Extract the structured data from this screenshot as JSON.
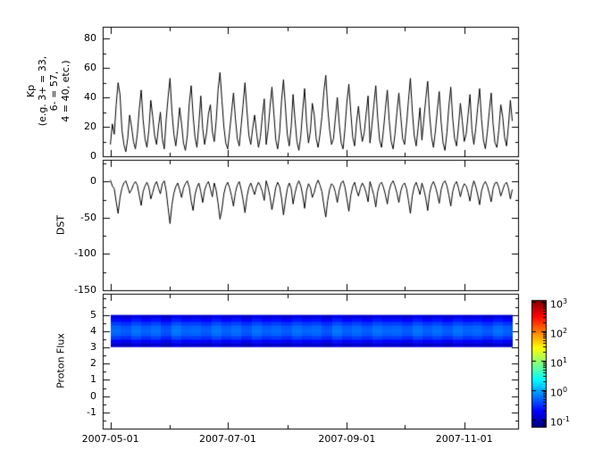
{
  "figure": {
    "background": "#ffffff",
    "axis_color": "#000000"
  },
  "x_axis": {
    "tick_labels": [
      "2007-05-01",
      "2007-07-01",
      "2007-09-01",
      "2007-11-01"
    ],
    "tick_days": [
      0,
      61,
      123,
      184
    ],
    "month_tick_days": [
      0,
      31,
      61,
      92,
      123,
      153,
      184
    ],
    "xlim_days": [
      -4,
      212
    ]
  },
  "chart_data": [
    {
      "type": "line",
      "name": "kp-index",
      "ylabel_lines": [
        "Kp",
        "(e.g. 3+ = 33,",
        "6- = 57,",
        "4 = 40, etc.)"
      ],
      "ylim": [
        0,
        88
      ],
      "yticks": [
        0,
        20,
        40,
        60,
        80
      ],
      "ytick_minor_step": 10,
      "x_days": [
        0,
        209
      ],
      "line_color": "#000000",
      "values": [
        8,
        22,
        15,
        35,
        50,
        42,
        18,
        8,
        3,
        12,
        28,
        20,
        10,
        5,
        15,
        32,
        45,
        25,
        12,
        6,
        18,
        38,
        27,
        14,
        8,
        20,
        30,
        12,
        5,
        25,
        40,
        53,
        30,
        15,
        7,
        18,
        33,
        22,
        9,
        4,
        14,
        36,
        48,
        28,
        13,
        6,
        22,
        41,
        19,
        8,
        16,
        29,
        35,
        17,
        10,
        24,
        45,
        57,
        38,
        20,
        9,
        5,
        17,
        30,
        43,
        26,
        12,
        7,
        21,
        35,
        50,
        31,
        14,
        8,
        19,
        28,
        16,
        6,
        13,
        27,
        39,
        8,
        18,
        33,
        47,
        29,
        11,
        5,
        16,
        38,
        52,
        34,
        15,
        7,
        20,
        42,
        25,
        10,
        4,
        14,
        31,
        46,
        23,
        9,
        17,
        36,
        28,
        12,
        6,
        15,
        27,
        44,
        55,
        33,
        18,
        8,
        12,
        26,
        40,
        22,
        9,
        5,
        19,
        37,
        49,
        30,
        13,
        7,
        23,
        34,
        20,
        10,
        16,
        29,
        41,
        9,
        21,
        35,
        48,
        26,
        11,
        6,
        18,
        32,
        45,
        24,
        10,
        5,
        15,
        30,
        43,
        27,
        12,
        8,
        22,
        38,
        53,
        31,
        14,
        7,
        19,
        33,
        11,
        25,
        39,
        51,
        28,
        13,
        6,
        17,
        31,
        44,
        23,
        9,
        4,
        16,
        34,
        47,
        26,
        12,
        7,
        20,
        36,
        24,
        10,
        15,
        28,
        42,
        18,
        8,
        19,
        33,
        46,
        25,
        11,
        5,
        16,
        30,
        43,
        22,
        9,
        6,
        18,
        35,
        27,
        13,
        7,
        21,
        38,
        24
      ]
    },
    {
      "type": "line",
      "name": "dst-index",
      "ylabel": "DST",
      "ylim": [
        -150,
        30
      ],
      "yticks": [
        0,
        -50,
        -100,
        -150
      ],
      "ytick_minor_step": 25,
      "x_days": [
        0,
        209
      ],
      "line_color": "#000000",
      "values": [
        2,
        -6,
        -10,
        -28,
        -44,
        -22,
        -9,
        -2,
        1,
        -7,
        -16,
        -11,
        -4,
        0,
        -5,
        -19,
        -33,
        -14,
        -6,
        -1,
        -8,
        -24,
        -15,
        -5,
        0,
        -9,
        -17,
        -3,
        1,
        -13,
        -36,
        -58,
        -32,
        -16,
        -7,
        -2,
        -11,
        -22,
        -9,
        -3,
        1,
        -8,
        -27,
        -40,
        -18,
        -8,
        -2,
        -14,
        -29,
        -12,
        -4,
        0,
        -10,
        -21,
        -2,
        -12,
        -30,
        -52,
        -38,
        -17,
        -6,
        -1,
        -9,
        -20,
        -34,
        -15,
        -5,
        0,
        -11,
        -25,
        -43,
        -21,
        -8,
        -2,
        -10,
        -18,
        -7,
        -1,
        -6,
        -14,
        -26,
        1,
        -8,
        -21,
        -39,
        -24,
        -8,
        -1,
        -7,
        -23,
        -46,
        -27,
        -10,
        -2,
        -9,
        -31,
        -16,
        -5,
        1,
        -6,
        -19,
        -37,
        -13,
        -3,
        -8,
        -22,
        -15,
        -4,
        2,
        -5,
        -14,
        -33,
        -49,
        -26,
        -11,
        -3,
        -6,
        -15,
        -29,
        -12,
        -2,
        1,
        -8,
        -24,
        -41,
        -19,
        -7,
        -1,
        -12,
        -20,
        -9,
        -2,
        -7,
        -16,
        -28,
        0,
        -9,
        -19,
        -35,
        -14,
        -4,
        -1,
        -8,
        -18,
        -31,
        -12,
        -3,
        1,
        -6,
        -16,
        -29,
        -13,
        -5,
        -2,
        -10,
        -26,
        -44,
        -20,
        -7,
        -1,
        -9,
        -18,
        -2,
        -11,
        -23,
        -40,
        -16,
        -5,
        0,
        -7,
        -17,
        -30,
        -11,
        -2,
        1,
        -6,
        -19,
        -34,
        -14,
        -4,
        0,
        -9,
        -21,
        -10,
        -3,
        -6,
        -15,
        -27,
        -9,
        1,
        -7,
        -18,
        -32,
        -13,
        -4,
        0,
        -6,
        -16,
        -28,
        -10,
        -2,
        -1,
        -8,
        -20,
        -12,
        -4,
        -1,
        -9,
        -24,
        -11
      ]
    },
    {
      "type": "heatmap",
      "name": "proton-flux",
      "ylabel": "Proton Flux",
      "ylim": [
        -2,
        6.3
      ],
      "yticks": [
        -1,
        0,
        1,
        2,
        3,
        4,
        5
      ],
      "ytick_minor_step": 0.5,
      "x_days": [
        0,
        209
      ],
      "colormap": "jet",
      "band": {
        "y_min": 3.05,
        "y_max": 5.0,
        "row_values": [
          0.12,
          0.2,
          0.35,
          0.5,
          0.55,
          0.5,
          0.35,
          0.22,
          0.14
        ],
        "column_variation": [
          1.0,
          0.85,
          1.1,
          0.9,
          1.05,
          0.8,
          1.15,
          0.95,
          1.0,
          0.88,
          1.12,
          0.92,
          1.06,
          0.84,
          1.1,
          0.9,
          1.0,
          0.86,
          1.08,
          0.94,
          1.02,
          0.82,
          1.14,
          0.9,
          1.04,
          0.88,
          1.1,
          0.96,
          1.0,
          0.85,
          1.12,
          0.9,
          1.05,
          0.87,
          1.1,
          0.93,
          1.0,
          0.84,
          1.08,
          0.9
        ]
      },
      "colorbar": {
        "scale": "log",
        "log_min": -1.25,
        "log_max": 3.05,
        "tick_exponents": [
          -1,
          0,
          1,
          2,
          3
        ]
      }
    }
  ]
}
